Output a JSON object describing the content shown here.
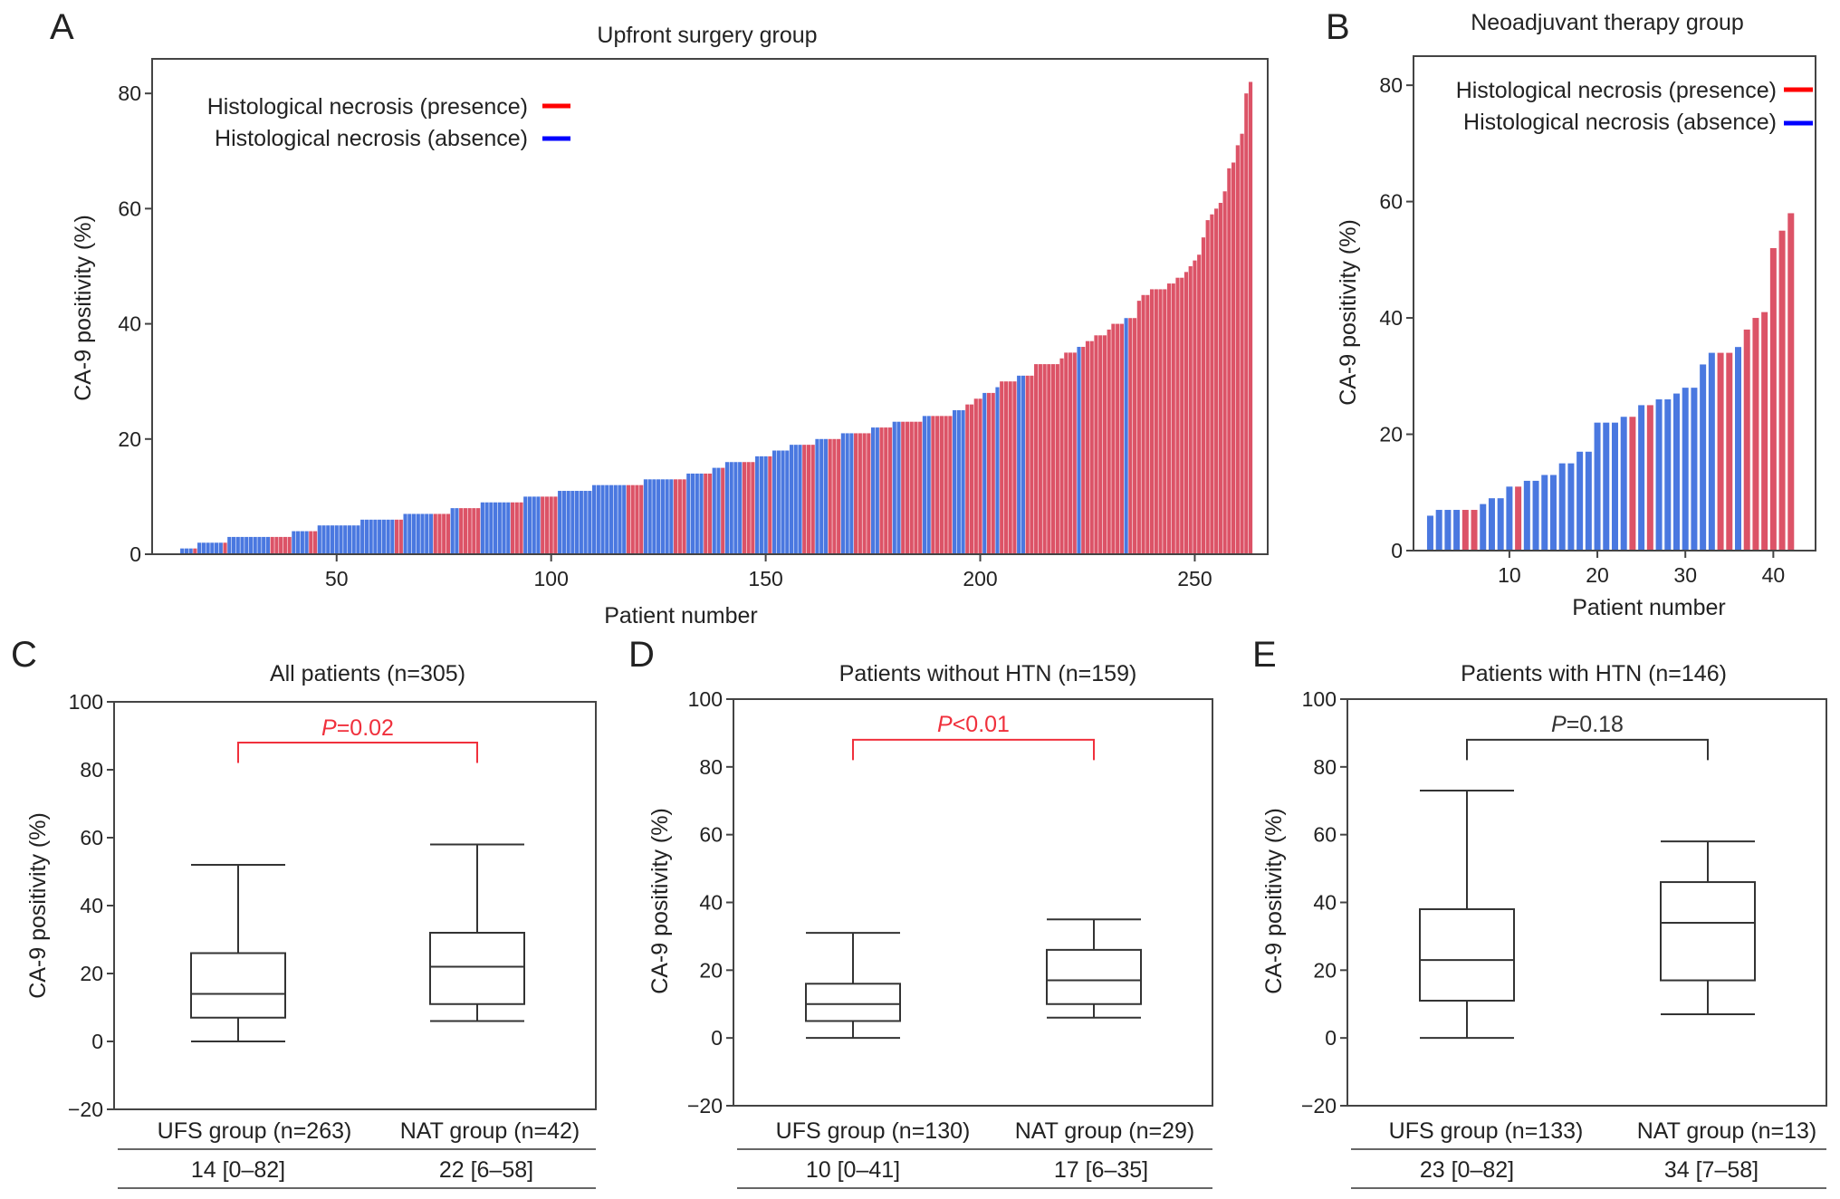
{
  "chart_data": [
    {
      "panel": "A",
      "type": "bar",
      "title": "Upfront surgery group",
      "xlabel": "Patient number",
      "ylabel": "CA-9 positivity (%)",
      "xlim": [
        7,
        267
      ],
      "ylim": [
        0,
        86
      ],
      "xticks": [
        50,
        100,
        150,
        200,
        250
      ],
      "yticks": [
        0,
        20,
        40,
        60,
        80
      ],
      "grid": false,
      "legend": {
        "position": "top-left",
        "entries": [
          {
            "label": "Histological necrosis (presence)",
            "color": "#ff0000"
          },
          {
            "label": "Histological necrosis (absence)",
            "color": "#0000ff"
          }
        ]
      },
      "bar_colors": {
        "presence": "#dc5367",
        "absence": "#4a78e0"
      },
      "runs": [
        {
          "v": 0,
          "absence": 13,
          "presence": 0
        },
        {
          "v": 1,
          "absence": 3,
          "presence": 1
        },
        {
          "v": 2,
          "absence": 6,
          "presence": 1
        },
        {
          "v": 3,
          "absence": 10,
          "presence": 5
        },
        {
          "v": 4,
          "absence": 4,
          "presence": 2
        },
        {
          "v": 5,
          "absence": 10,
          "presence": 0
        },
        {
          "v": 6,
          "absence": 8,
          "presence": 2
        },
        {
          "v": 7,
          "absence": 7,
          "presence": 4
        },
        {
          "v": 8,
          "absence": 2,
          "presence": 5
        },
        {
          "v": 9,
          "absence": 7,
          "presence": 3
        },
        {
          "v": 10,
          "absence": 4,
          "presence": 4
        },
        {
          "v": 11,
          "absence": 8,
          "presence": 0
        },
        {
          "v": 12,
          "absence": 8,
          "presence": 4
        },
        {
          "v": 13,
          "absence": 7,
          "presence": 3
        },
        {
          "v": 14,
          "absence": 4,
          "presence": 2
        },
        {
          "v": 15,
          "absence": 2,
          "presence": 1
        },
        {
          "v": 16,
          "absence": 4,
          "presence": 3
        },
        {
          "v": 17,
          "absence": 3,
          "presence": 1
        },
        {
          "v": 18,
          "absence": 4,
          "presence": 0
        },
        {
          "v": 19,
          "absence": 3,
          "presence": 3
        },
        {
          "v": 20,
          "absence": 3,
          "presence": 3
        },
        {
          "v": 21,
          "absence": 3,
          "presence": 4
        },
        {
          "v": 22,
          "absence": 2,
          "presence": 3
        },
        {
          "v": 23,
          "absence": 2,
          "presence": 5
        },
        {
          "v": 24,
          "absence": 2,
          "presence": 5
        },
        {
          "v": 25,
          "absence": 3,
          "presence": 0
        },
        {
          "v": 26,
          "absence": 0,
          "presence": 2
        },
        {
          "v": 27,
          "absence": 0,
          "presence": 2
        },
        {
          "v": 28,
          "absence": 1,
          "presence": 2
        },
        {
          "v": 29,
          "absence": 1,
          "presence": 0
        },
        {
          "v": 30,
          "absence": 0,
          "presence": 4
        },
        {
          "v": 31,
          "absence": 2,
          "presence": 2
        },
        {
          "v": 33,
          "absence": 0,
          "presence": 6
        },
        {
          "v": 34,
          "absence": 0,
          "presence": 1
        },
        {
          "v": 35,
          "absence": 0,
          "presence": 3
        },
        {
          "v": 36,
          "absence": 1,
          "presence": 1
        },
        {
          "v": 37,
          "absence": 0,
          "presence": 2
        },
        {
          "v": 38,
          "absence": 0,
          "presence": 3
        },
        {
          "v": 39,
          "absence": 0,
          "presence": 1
        },
        {
          "v": 40,
          "absence": 0,
          "presence": 3
        },
        {
          "v": 41,
          "absence": 1,
          "presence": 2
        },
        {
          "v": 44,
          "absence": 0,
          "presence": 1
        },
        {
          "v": 45,
          "absence": 0,
          "presence": 2
        },
        {
          "v": 46,
          "absence": 0,
          "presence": 4
        },
        {
          "v": 47,
          "absence": 0,
          "presence": 2
        },
        {
          "v": 48,
          "absence": 0,
          "presence": 2
        },
        {
          "v": 49,
          "absence": 0,
          "presence": 1
        },
        {
          "v": 50,
          "absence": 0,
          "presence": 1
        },
        {
          "v": 51,
          "absence": 0,
          "presence": 1
        },
        {
          "v": 52,
          "absence": 0,
          "presence": 1
        },
        {
          "v": 55,
          "absence": 0,
          "presence": 1
        },
        {
          "v": 58,
          "absence": 0,
          "presence": 1
        },
        {
          "v": 59,
          "absence": 0,
          "presence": 1
        },
        {
          "v": 60,
          "absence": 0,
          "presence": 1
        },
        {
          "v": 61,
          "absence": 0,
          "presence": 1
        },
        {
          "v": 63,
          "absence": 0,
          "presence": 1
        },
        {
          "v": 67,
          "absence": 0,
          "presence": 1
        },
        {
          "v": 68,
          "absence": 0,
          "presence": 1
        },
        {
          "v": 71,
          "absence": 0,
          "presence": 1
        },
        {
          "v": 73,
          "absence": 0,
          "presence": 1
        },
        {
          "v": 80,
          "absence": 0,
          "presence": 1
        },
        {
          "v": 82,
          "absence": 0,
          "presence": 1
        }
      ]
    },
    {
      "panel": "B",
      "type": "bar",
      "title": "Neoadjuvant therapy group",
      "xlabel": "Patient number",
      "ylabel": "CA-9 positivity (%)",
      "xlim": [
        -0.9,
        44.8
      ],
      "ylim": [
        0,
        85
      ],
      "xticks": [
        10,
        20,
        30,
        40
      ],
      "yticks": [
        0,
        20,
        40,
        60,
        80
      ],
      "grid": false,
      "legend": {
        "position": "top-left",
        "entries": [
          {
            "label": "Histological necrosis (presence)",
            "color": "#ff0000"
          },
          {
            "label": "Histological necrosis (absence)",
            "color": "#0000ff"
          }
        ]
      },
      "bar_colors": {
        "presence": "#dc5367",
        "absence": "#4a78e0"
      },
      "values": [
        6,
        7,
        7,
        7,
        7,
        7,
        8,
        9,
        9,
        11,
        11,
        12,
        12,
        13,
        13,
        15,
        15,
        17,
        17,
        22,
        22,
        22,
        23,
        23,
        25,
        25,
        26,
        26,
        27,
        28,
        28,
        32,
        34,
        34,
        34,
        35,
        38,
        40,
        41,
        52,
        55,
        58
      ],
      "necrosis": [
        "absence",
        "absence",
        "absence",
        "absence",
        "presence",
        "presence",
        "absence",
        "absence",
        "absence",
        "absence",
        "presence",
        "absence",
        "absence",
        "absence",
        "absence",
        "absence",
        "absence",
        "absence",
        "absence",
        "absence",
        "absence",
        "absence",
        "absence",
        "presence",
        "absence",
        "presence",
        "absence",
        "absence",
        "absence",
        "absence",
        "absence",
        "absence",
        "absence",
        "presence",
        "presence",
        "absence",
        "presence",
        "presence",
        "presence",
        "presence",
        "presence",
        "presence"
      ]
    },
    {
      "panel": "C",
      "type": "box",
      "title": "All patients (n=305)",
      "ylabel": "CA-9 positivity (%)",
      "ylim": [
        -20,
        100
      ],
      "yticks": [
        -20,
        0,
        20,
        40,
        60,
        80,
        100
      ],
      "categories": [
        "UFS group (n=263)",
        "NAT group (n=42)"
      ],
      "summary": [
        "14 [0–82]",
        "22 [6–58]"
      ],
      "boxes": [
        {
          "min": 0,
          "q1": 7,
          "median": 14,
          "q3": 26,
          "max": 52
        },
        {
          "min": 6,
          "q1": 11,
          "median": 22,
          "q3": 32,
          "max": 58
        }
      ],
      "p_value": {
        "symbol": "P",
        "text": "=0.02",
        "color": "#f0303c"
      }
    },
    {
      "panel": "D",
      "type": "box",
      "title": "Patients without HTN (n=159)",
      "ylabel": "CA-9 positivity (%)",
      "ylim": [
        -20,
        100
      ],
      "yticks": [
        -20,
        0,
        20,
        40,
        60,
        80,
        100
      ],
      "categories": [
        "UFS group (n=130)",
        "NAT group (n=29)"
      ],
      "summary": [
        "10 [0–41]",
        "17 [6–35]"
      ],
      "boxes": [
        {
          "min": 0,
          "q1": 5,
          "median": 10,
          "q3": 16,
          "max": 31
        },
        {
          "min": 6,
          "q1": 10,
          "median": 17,
          "q3": 26,
          "max": 35
        }
      ],
      "p_value": {
        "symbol": "P",
        "text": "<0.01",
        "color": "#f0303c"
      }
    },
    {
      "panel": "E",
      "type": "box",
      "title": "Patients with HTN (n=146)",
      "ylabel": "CA-9 positivity (%)",
      "ylim": [
        -20,
        100
      ],
      "yticks": [
        -20,
        0,
        20,
        40,
        60,
        80,
        100
      ],
      "categories": [
        "UFS group (n=133)",
        "NAT group (n=13)"
      ],
      "summary": [
        "23 [0–82]",
        "34 [7–58]"
      ],
      "boxes": [
        {
          "min": 0,
          "q1": 11,
          "median": 23,
          "q3": 38,
          "max": 73
        },
        {
          "min": 7,
          "q1": 17,
          "median": 34,
          "q3": 46,
          "max": 58
        }
      ],
      "p_value": {
        "symbol": "P",
        "text": "=0.18",
        "color": "#333333"
      }
    }
  ]
}
